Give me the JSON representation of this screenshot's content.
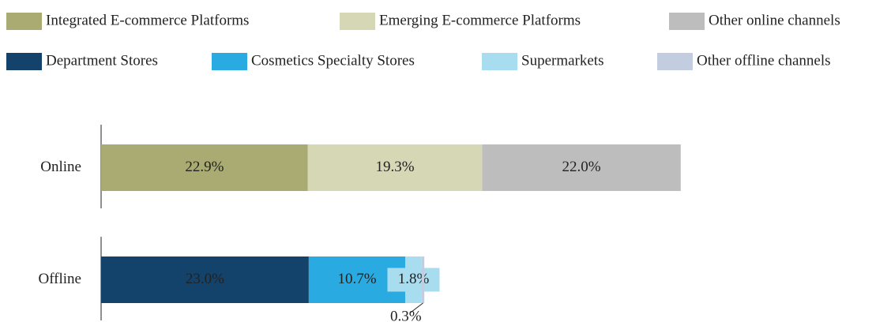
{
  "chart_data": {
    "type": "stacked-bar-horizontal",
    "categories": [
      "Online",
      "Offline"
    ],
    "series": [
      {
        "name": "Integrated E-commerce Platforms",
        "color": "#a9ab72",
        "values": [
          22.9,
          null
        ],
        "value_labels": [
          "22.9%",
          null
        ]
      },
      {
        "name": "Emerging E-commerce Platforms",
        "color": "#d6d7b5",
        "values": [
          19.3,
          null
        ],
        "value_labels": [
          "19.3%",
          null
        ]
      },
      {
        "name": "Other online channels",
        "color": "#bdbdbd",
        "values": [
          22.0,
          null
        ],
        "value_labels": [
          "22.0%",
          null
        ]
      },
      {
        "name": "Department Stores",
        "color": "#13426a",
        "values": [
          null,
          23.0
        ],
        "value_labels": [
          null,
          "23.0%"
        ]
      },
      {
        "name": "Cosmetics Specialty Stores",
        "color": "#29abe2",
        "values": [
          null,
          10.7
        ],
        "value_labels": [
          null,
          "10.7%"
        ]
      },
      {
        "name": "Supermarkets",
        "color": "#a8ddf0",
        "values": [
          null,
          1.8
        ],
        "value_labels": [
          null,
          "1.8%"
        ]
      },
      {
        "name": "Other offline channels",
        "color": "#c3cde0",
        "values": [
          null,
          0.3
        ],
        "value_labels": [
          null,
          "0.3%"
        ]
      }
    ]
  }
}
